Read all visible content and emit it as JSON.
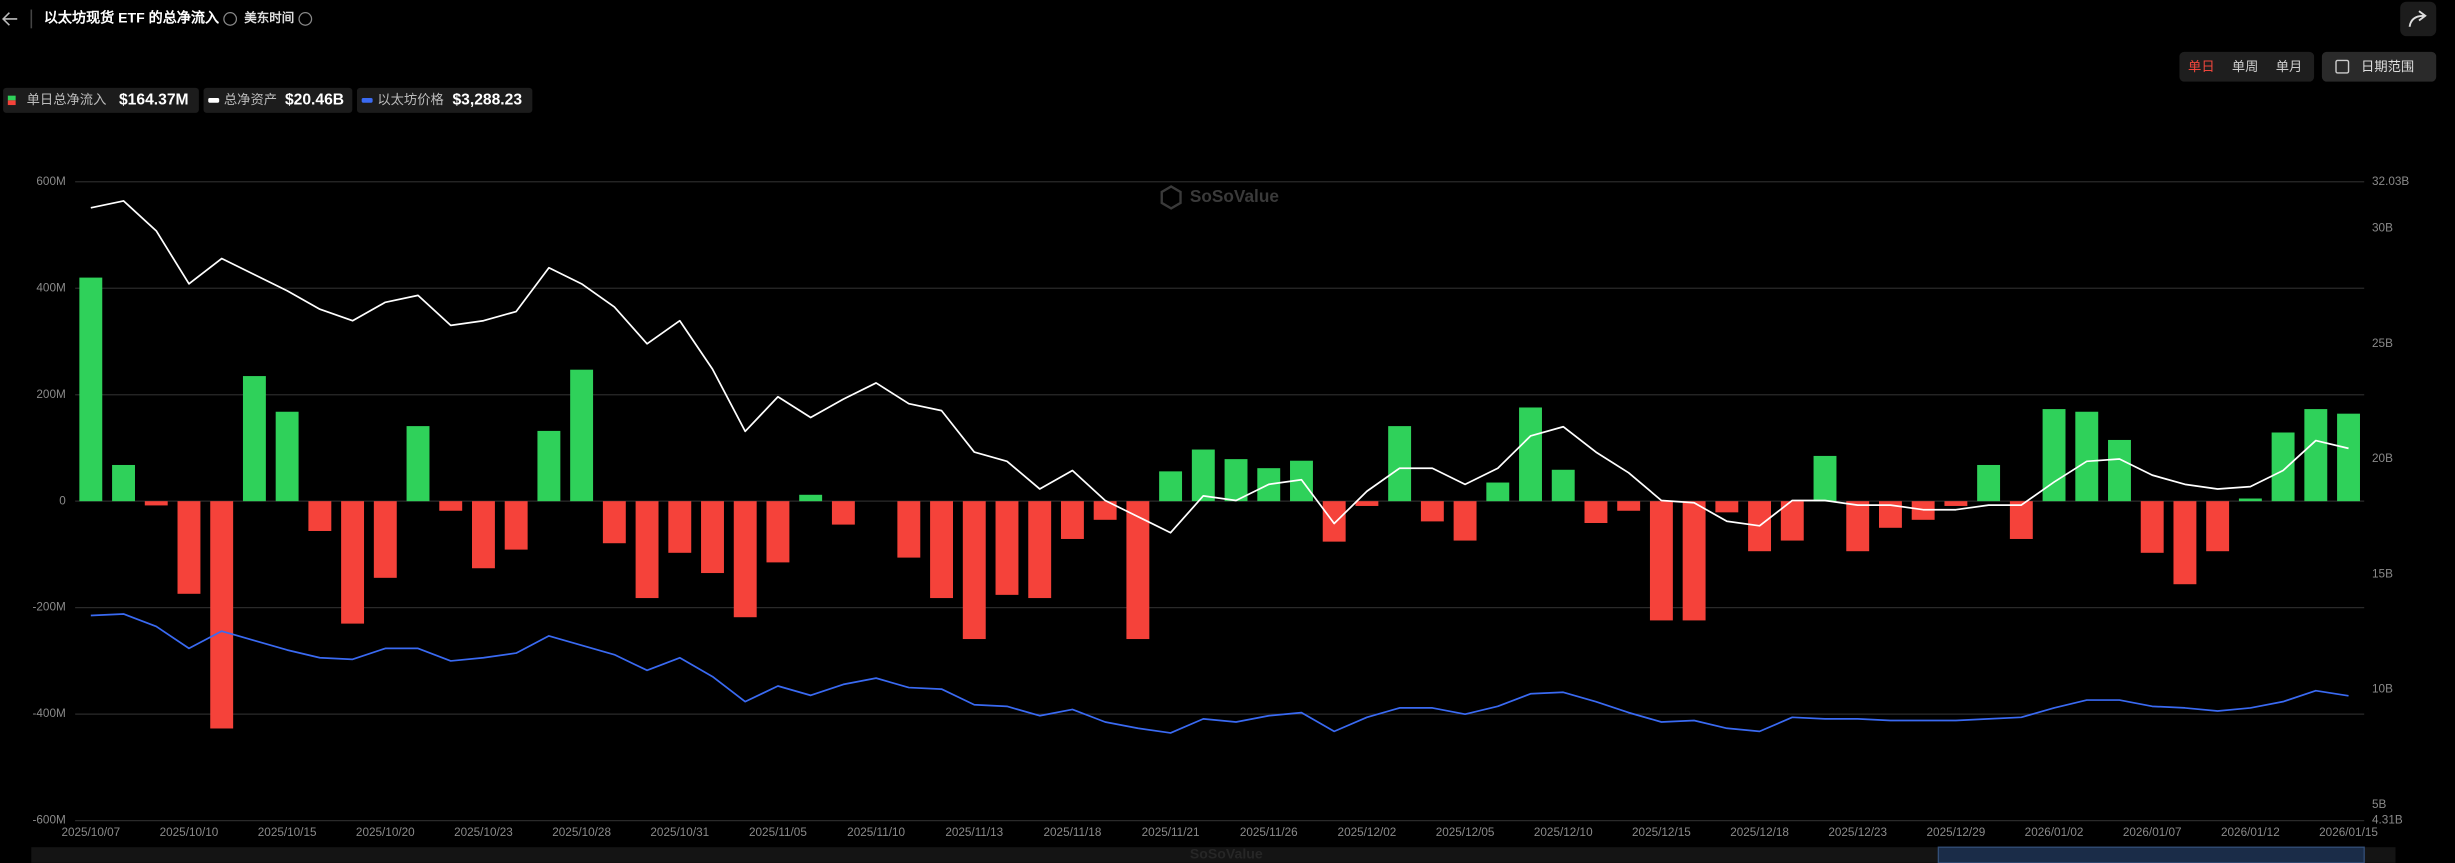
{
  "header": {
    "title": "以太坊现货 ETF 的总净流入",
    "timezone": "美东时间",
    "periods": [
      "单日",
      "单周",
      "单月"
    ],
    "date_range": "日期范围"
  },
  "chart_data": {
    "type": "bar",
    "watermark": "SoSoValue",
    "categories": [
      "2025/10/07",
      null,
      null,
      "2025/10/10",
      null,
      null,
      "2025/10/15",
      null,
      null,
      "2025/10/20",
      null,
      null,
      "2025/10/23",
      null,
      null,
      "2025/10/28",
      null,
      null,
      "2025/10/31",
      null,
      null,
      "2025/11/05",
      null,
      null,
      "2025/11/10",
      null,
      null,
      "2025/11/13",
      null,
      null,
      "2025/11/18",
      null,
      null,
      "2025/11/21",
      null,
      null,
      "2025/11/26",
      null,
      null,
      "2025/12/02",
      null,
      null,
      "2025/12/05",
      null,
      null,
      "2025/12/10",
      null,
      null,
      "2025/12/15",
      null,
      null,
      "2025/12/18",
      null,
      null,
      "2025/12/23",
      null,
      null,
      "2025/12/29",
      null,
      null,
      "2026/01/02",
      null,
      null,
      "2026/01/07",
      null,
      null,
      "2026/01/12",
      null,
      null,
      "2026/01/15"
    ],
    "series": [
      {
        "name": "单日总净流入",
        "type": "bar",
        "latest": "$164.37M",
        "positive_color": "#2fd15a",
        "negative_color": "#f5423a",
        "values": [
          420,
          68,
          -8,
          -174,
          -427,
          235,
          168,
          -56,
          -230,
          -144,
          141,
          -18,
          -126,
          -91,
          132,
          247,
          -79,
          -182,
          -97,
          -135,
          -218,
          -115,
          12,
          -44,
          0,
          -106,
          -182,
          -259,
          -176,
          -182,
          -71,
          -35,
          -259,
          56,
          97,
          79,
          62,
          76,
          -76,
          -9,
          141,
          -38,
          -74,
          35,
          176,
          59,
          -41,
          -18,
          -224,
          -224,
          -21,
          -94,
          -74,
          85,
          -94,
          -50,
          -35,
          -9,
          68,
          -71,
          173,
          168,
          115,
          -97,
          -156,
          -94,
          5,
          129,
          173,
          164.37
        ]
      },
      {
        "name": "总净资产",
        "type": "line",
        "axis": "y2",
        "color": "#ffffff",
        "latest": "$20.46B",
        "values": [
          30.9,
          31.2,
          29.9,
          27.6,
          28.7,
          28.0,
          27.3,
          26.5,
          26.0,
          26.8,
          27.1,
          25.8,
          26.0,
          26.4,
          28.3,
          27.6,
          26.6,
          25.0,
          26.0,
          23.9,
          21.2,
          22.7,
          21.8,
          22.6,
          23.3,
          22.4,
          22.1,
          20.3,
          19.9,
          18.7,
          19.5,
          18.2,
          17.5,
          16.8,
          18.4,
          18.2,
          18.9,
          19.1,
          17.2,
          18.6,
          19.6,
          19.6,
          18.9,
          19.6,
          21.0,
          21.4,
          20.3,
          19.4,
          18.2,
          18.1,
          17.3,
          17.1,
          18.2,
          18.2,
          18.0,
          18.0,
          17.8,
          17.8,
          18.0,
          18.0,
          19.0,
          19.9,
          20.0,
          19.3,
          18.9,
          18.7,
          18.8,
          19.5,
          20.8,
          20.46
        ]
      },
      {
        "name": "以太坊价格",
        "type": "line",
        "axis": "y3",
        "color": "#3a6af2",
        "latest": "$3,288.23",
        "values": [
          4453,
          4475,
          4294,
          3976,
          4226,
          4090,
          3953,
          3840,
          3817,
          3976,
          3976,
          3794,
          3840,
          3908,
          4157,
          4021,
          3885,
          3658,
          3840,
          3567,
          3204,
          3431,
          3295,
          3454,
          3545,
          3408,
          3386,
          3159,
          3136,
          3000,
          3091,
          2909,
          2818,
          2750,
          2954,
          2909,
          3000,
          3045,
          2773,
          2977,
          3113,
          3113,
          3022,
          3136,
          3318,
          3340,
          3204,
          3045,
          2909,
          2931,
          2818,
          2773,
          2977,
          2954,
          2954,
          2931,
          2931,
          2931,
          2954,
          2977,
          3113,
          3227,
          3227,
          3136,
          3113,
          3068,
          3113,
          3204,
          3363,
          3288.23
        ]
      }
    ],
    "ylim": [
      -600,
      600
    ],
    "yticks": [
      {
        "value": -600,
        "label": "-600M"
      },
      {
        "value": -400,
        "label": "-400M"
      },
      {
        "value": -200,
        "label": "-200M"
      },
      0,
      {
        "value": 200,
        "label": "200M"
      },
      {
        "value": 400,
        "label": "400M"
      },
      {
        "value": 600,
        "label": "600M"
      }
    ],
    "y2lim": [
      4.31,
      32.03
    ],
    "y2ticks": [
      {
        "value": 4.31,
        "label": "4.31B"
      },
      {
        "value": 5,
        "label": "5B"
      },
      {
        "value": 10,
        "label": "10B"
      },
      {
        "value": 15,
        "label": "15B"
      },
      {
        "value": 20,
        "label": "20B"
      },
      {
        "value": 25,
        "label": "25B"
      },
      {
        "value": 30,
        "label": "30B"
      },
      {
        "value": 32.03,
        "label": "32.03B"
      }
    ],
    "y3lim": [
      1480,
      10740
    ],
    "grid": true
  }
}
